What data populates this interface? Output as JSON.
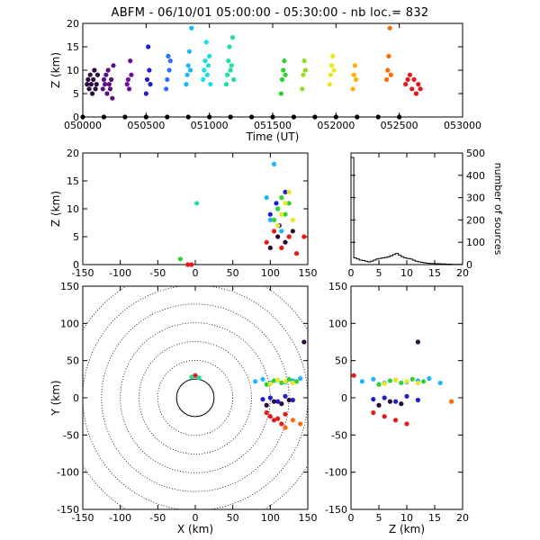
{
  "title": "ABFM - 06/10/01 05:00:00 - 05:30:00 - nb loc.=     832",
  "colors": {
    "palette": [
      "#2b0a3d",
      "#5a0f82",
      "#2020c8",
      "#2a6fff",
      "#19b7ff",
      "#18e0e0",
      "#20e0a0",
      "#30d030",
      "#90e020",
      "#e8e820",
      "#ffb000",
      "#ff6a00",
      "#e81818"
    ]
  },
  "chart_data": [
    {
      "id": "time_height",
      "type": "scatter",
      "xlabel": "Time (UT)",
      "ylabel": "Z (km)",
      "xlim": [
        0,
        1800
      ],
      "ylim": [
        0,
        20
      ],
      "xticks": [
        "050000",
        "050500",
        "051000",
        "051500",
        "052000",
        "052500",
        "053000"
      ],
      "yticks": [
        0,
        5,
        10,
        15,
        20
      ],
      "series": [
        {
          "color": "#2b0a3d",
          "x": [
            20,
            25,
            30,
            35,
            40,
            45,
            50,
            55,
            60,
            65,
            70
          ],
          "y": [
            7,
            8,
            6,
            9,
            7,
            5,
            8,
            10,
            6,
            7,
            9
          ]
        },
        {
          "color": "#5a0f82",
          "x": [
            95,
            100,
            105,
            110,
            115,
            120,
            125,
            130,
            135,
            140,
            145
          ],
          "y": [
            6,
            8,
            7,
            9,
            5,
            10,
            7,
            6,
            8,
            4,
            11
          ]
        },
        {
          "color": "#6a0fa0",
          "x": [
            210,
            215,
            220,
            225,
            230
          ],
          "y": [
            7,
            8,
            6,
            12,
            9
          ]
        },
        {
          "color": "#2020c8",
          "x": [
            300,
            305,
            310,
            315,
            320
          ],
          "y": [
            5,
            8,
            15,
            10,
            7
          ]
        },
        {
          "color": "#2a6fff",
          "x": [
            395,
            400,
            405,
            410,
            415
          ],
          "y": [
            6,
            8,
            13,
            10,
            12
          ]
        },
        {
          "color": "#19b7ff",
          "x": [
            490,
            495,
            500,
            505,
            510,
            515
          ],
          "y": [
            7,
            9,
            11,
            14,
            10,
            19
          ]
        },
        {
          "color": "#18e0e0",
          "x": [
            570,
            575,
            580,
            585,
            590,
            595,
            600,
            605
          ],
          "y": [
            8,
            10,
            12,
            16,
            9,
            11,
            13,
            7
          ]
        },
        {
          "color": "#20e0a0",
          "x": [
            680,
            685,
            690,
            695,
            700,
            705,
            710,
            715
          ],
          "y": [
            7,
            9,
            12,
            15,
            10,
            11,
            17,
            8
          ]
        },
        {
          "color": "#30d030",
          "x": [
            940,
            945,
            950,
            955,
            960
          ],
          "y": [
            5,
            8,
            10,
            12,
            9
          ]
        },
        {
          "color": "#90e020",
          "x": [
            1040,
            1045,
            1050,
            1055
          ],
          "y": [
            6,
            9,
            12,
            10
          ]
        },
        {
          "color": "#e8e820",
          "x": [
            1170,
            1175,
            1180,
            1185,
            1190
          ],
          "y": [
            7,
            9,
            11,
            13,
            10
          ]
        },
        {
          "color": "#ffb000",
          "x": [
            1280,
            1285,
            1290,
            1295
          ],
          "y": [
            6,
            9,
            11,
            8
          ]
        },
        {
          "color": "#ff6a00",
          "x": [
            1440,
            1445,
            1450,
            1455,
            1460
          ],
          "y": [
            8,
            10,
            13,
            19,
            9
          ]
        },
        {
          "color": "#e81818",
          "x": [
            1530,
            1540,
            1550,
            1560,
            1570,
            1580,
            1590,
            1600
          ],
          "y": [
            7,
            8,
            9,
            6,
            8,
            5,
            7,
            6
          ]
        },
        {
          "color": "#000000",
          "x": [
            0,
            100,
            200,
            300,
            400,
            500,
            600,
            700,
            800,
            900,
            1000,
            1100,
            1200,
            1300,
            1400,
            1500
          ],
          "y": [
            0,
            0,
            0,
            0,
            0,
            0,
            0,
            0,
            0,
            0,
            0,
            0,
            0,
            0,
            0,
            0
          ]
        }
      ]
    },
    {
      "id": "x_height",
      "type": "scatter",
      "ylabel": "Z (km)",
      "xlim": [
        -150,
        150
      ],
      "ylim": [
        0,
        20
      ],
      "xticks": [
        -150,
        -100,
        -50,
        0,
        50,
        100,
        150
      ],
      "yticks": [
        0,
        5,
        10,
        15,
        20
      ],
      "series": [
        {
          "color": "#20e0a0",
          "x": [
            2
          ],
          "y": [
            11
          ]
        },
        {
          "color": "#30d030",
          "x": [
            -20
          ],
          "y": [
            1
          ]
        },
        {
          "color": "#e81818",
          "x": [
            -10,
            -5
          ],
          "y": [
            0,
            0
          ]
        },
        {
          "color": "#19b7ff",
          "x": [
            95,
            100,
            105,
            110,
            115
          ],
          "y": [
            12,
            8,
            18,
            10,
            6
          ]
        },
        {
          "color": "#2020c8",
          "x": [
            100,
            108,
            112,
            120
          ],
          "y": [
            9,
            11,
            7,
            13
          ]
        },
        {
          "color": "#30d030",
          "x": [
            105,
            110,
            115,
            120,
            125
          ],
          "y": [
            8,
            10,
            12,
            9,
            11
          ]
        },
        {
          "color": "#e8e820",
          "x": [
            110,
            115,
            120,
            125,
            130
          ],
          "y": [
            7,
            9,
            11,
            13,
            8
          ]
        },
        {
          "color": "#e81818",
          "x": [
            95,
            105,
            115,
            125,
            135,
            145
          ],
          "y": [
            4,
            6,
            3,
            5,
            2,
            5
          ]
        },
        {
          "color": "#2b0a3d",
          "x": [
            100,
            110,
            120,
            130
          ],
          "y": [
            3,
            5,
            4,
            6
          ]
        }
      ]
    },
    {
      "id": "height_hist",
      "type": "line",
      "xlabel": "",
      "ylabel": "number of sources",
      "xlim": [
        0,
        20
      ],
      "ylim": [
        0,
        500
      ],
      "xticks": [
        0,
        5,
        10,
        15,
        20
      ],
      "yticks": [
        0,
        100,
        200,
        300,
        400,
        500
      ],
      "x": [
        0,
        0.5,
        1,
        1.5,
        2,
        2.5,
        3,
        3.5,
        4,
        4.5,
        5,
        5.5,
        6,
        6.5,
        7,
        7.5,
        8,
        8.5,
        9,
        9.5,
        10,
        10.5,
        11,
        11.5,
        12,
        12.5,
        13,
        13.5,
        14,
        14.5,
        15,
        16,
        17,
        18,
        19,
        20
      ],
      "y": [
        480,
        30,
        25,
        20,
        18,
        15,
        12,
        15,
        20,
        25,
        28,
        30,
        32,
        35,
        40,
        45,
        50,
        42,
        35,
        30,
        28,
        25,
        20,
        15,
        12,
        10,
        8,
        6,
        5,
        5,
        4,
        3,
        2,
        1,
        1,
        0
      ]
    },
    {
      "id": "plan_view",
      "type": "scatter",
      "xlabel": "X (km)",
      "ylabel": "Y (km)",
      "xlim": [
        -150,
        150
      ],
      "ylim": [
        -150,
        150
      ],
      "xticks": [
        -150,
        -100,
        -50,
        0,
        50,
        100,
        150
      ],
      "yticks": [
        -150,
        -100,
        -50,
        0,
        50,
        100,
        150
      ],
      "range_rings_km": [
        25,
        50,
        75,
        100,
        125,
        150,
        175
      ],
      "series": [
        {
          "color": "#20e0a0",
          "x": [
            -5,
            5
          ],
          "y": [
            28,
            27
          ]
        },
        {
          "color": "#e81818",
          "x": [
            0
          ],
          "y": [
            30
          ]
        },
        {
          "color": "#19b7ff",
          "x": [
            80,
            90,
            100,
            110,
            120,
            130,
            140
          ],
          "y": [
            22,
            25,
            20,
            24,
            21,
            23,
            26
          ]
        },
        {
          "color": "#30d030",
          "x": [
            95,
            105,
            115,
            125,
            135
          ],
          "y": [
            18,
            23,
            20,
            25,
            22
          ]
        },
        {
          "color": "#e8e820",
          "x": [
            100,
            110,
            120,
            130
          ],
          "y": [
            19,
            24,
            22,
            20
          ]
        },
        {
          "color": "#2020c8",
          "x": [
            90,
            100,
            110,
            120,
            130
          ],
          "y": [
            -2,
            0,
            -5,
            2,
            -3
          ]
        },
        {
          "color": "#2b0a3d",
          "x": [
            95,
            105,
            115,
            125,
            145
          ],
          "y": [
            -10,
            -5,
            -8,
            -3,
            75
          ]
        },
        {
          "color": "#e81818",
          "x": [
            95,
            100,
            105,
            110,
            115,
            120
          ],
          "y": [
            -20,
            -25,
            -30,
            -28,
            -35,
            -22
          ]
        },
        {
          "color": "#ff6a00",
          "x": [
            120,
            130,
            140
          ],
          "y": [
            -40,
            -30,
            -35
          ]
        }
      ]
    },
    {
      "id": "z_y",
      "type": "scatter",
      "xlabel": "Z (km)",
      "xlim": [
        0,
        20
      ],
      "ylim": [
        -150,
        150
      ],
      "xticks": [
        0,
        5,
        10,
        15,
        20
      ],
      "yticks": [
        -150,
        -100,
        -50,
        0,
        50,
        100,
        150
      ],
      "series": [
        {
          "color": "#e81818",
          "x": [
            0.5
          ],
          "y": [
            30
          ]
        },
        {
          "color": "#19b7ff",
          "x": [
            2,
            4,
            6,
            8,
            10,
            12,
            14,
            16
          ],
          "y": [
            22,
            25,
            20,
            24,
            21,
            23,
            26,
            20
          ]
        },
        {
          "color": "#30d030",
          "x": [
            5,
            7,
            9,
            11,
            13
          ],
          "y": [
            18,
            23,
            20,
            25,
            22
          ]
        },
        {
          "color": "#e8e820",
          "x": [
            6,
            8,
            10,
            12
          ],
          "y": [
            19,
            24,
            22,
            20
          ]
        },
        {
          "color": "#2020c8",
          "x": [
            4,
            6,
            8,
            10,
            12
          ],
          "y": [
            -2,
            0,
            -5,
            2,
            -3
          ]
        },
        {
          "color": "#2b0a3d",
          "x": [
            5,
            7,
            9,
            12
          ],
          "y": [
            -10,
            -5,
            -8,
            75
          ]
        },
        {
          "color": "#e81818",
          "x": [
            4,
            6,
            8,
            10
          ],
          "y": [
            -20,
            -25,
            -30,
            -35
          ]
        },
        {
          "color": "#ff6a00",
          "x": [
            18
          ],
          "y": [
            -5
          ]
        }
      ]
    }
  ]
}
